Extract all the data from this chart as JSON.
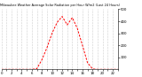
{
  "title": "Milwaukee Weather Average Solar Radiation per Hour W/m2 (Last 24 Hours)",
  "hours": [
    0,
    1,
    2,
    3,
    4,
    5,
    6,
    7,
    8,
    9,
    10,
    11,
    12,
    13,
    14,
    15,
    16,
    17,
    18,
    19,
    20,
    21,
    22,
    23
  ],
  "values": [
    0,
    0,
    0,
    0,
    0,
    0,
    0,
    5,
    80,
    180,
    300,
    390,
    440,
    370,
    430,
    340,
    200,
    55,
    3,
    0,
    0,
    0,
    0,
    0
  ],
  "line_color": "#ff0000",
  "bg_color": "#ffffff",
  "grid_color": "#999999",
  "ymax": 500,
  "ymin": 0,
  "yticks": [
    100,
    200,
    300,
    400,
    500
  ],
  "title_fontsize": 2.5,
  "tick_fontsize": 2.8
}
